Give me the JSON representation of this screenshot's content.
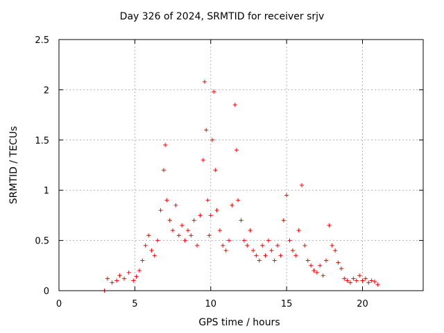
{
  "chart_data": {
    "type": "scatter",
    "title": "Day 326 of 2024, SRMTID for receiver srjv",
    "xlabel": "GPS time / hours",
    "ylabel": "SRMTID / TECUs",
    "xlim": [
      0,
      24
    ],
    "ylim": [
      0,
      2.5
    ],
    "xticks": [
      0,
      5,
      10,
      15,
      20
    ],
    "xtick_labels": [
      "0",
      "5",
      "10",
      "15",
      "20"
    ],
    "yticks": [
      0,
      0.5,
      1,
      1.5,
      2,
      2.5
    ],
    "ytick_labels": [
      "0",
      "0.5",
      "1",
      "1.5",
      "2",
      "2.5"
    ],
    "grid": true,
    "marker": "+",
    "color": "#ff0000",
    "series": [
      {
        "name": "SRMTID",
        "x": [
          3.0,
          3.2,
          3.5,
          3.8,
          4.0,
          4.3,
          4.6,
          4.9,
          5.1,
          5.3,
          5.5,
          5.7,
          5.9,
          6.1,
          6.3,
          6.5,
          6.7,
          6.9,
          7.0,
          7.1,
          7.3,
          7.5,
          7.7,
          7.9,
          8.1,
          8.3,
          8.5,
          8.7,
          8.9,
          9.1,
          9.3,
          9.5,
          9.6,
          9.7,
          9.8,
          9.9,
          10.0,
          10.1,
          10.2,
          10.3,
          10.4,
          10.6,
          10.8,
          11.0,
          11.2,
          11.4,
          11.6,
          11.7,
          11.8,
          12.0,
          12.2,
          12.4,
          12.6,
          12.8,
          13.0,
          13.2,
          13.4,
          13.6,
          13.8,
          14.0,
          14.2,
          14.4,
          14.6,
          14.8,
          15.0,
          15.2,
          15.4,
          15.6,
          15.8,
          16.0,
          16.2,
          16.4,
          16.6,
          16.8,
          17.0,
          17.2,
          17.4,
          17.6,
          17.8,
          18.0,
          18.2,
          18.4,
          18.6,
          18.8,
          19.0,
          19.2,
          19.4,
          19.6,
          19.8,
          20.0,
          20.2,
          20.4,
          20.6,
          20.8,
          21.0
        ],
        "y": [
          0.0,
          0.12,
          0.08,
          0.1,
          0.15,
          0.12,
          0.18,
          0.1,
          0.14,
          0.2,
          0.3,
          0.45,
          0.55,
          0.4,
          0.35,
          0.5,
          0.8,
          1.2,
          1.45,
          0.9,
          0.7,
          0.6,
          0.85,
          0.55,
          0.65,
          0.5,
          0.6,
          0.55,
          0.7,
          0.45,
          0.75,
          1.3,
          2.08,
          1.6,
          0.9,
          0.55,
          0.75,
          1.5,
          1.98,
          1.2,
          0.8,
          0.6,
          0.45,
          0.4,
          0.5,
          0.85,
          1.85,
          1.4,
          0.9,
          0.7,
          0.5,
          0.45,
          0.6,
          0.4,
          0.35,
          0.3,
          0.45,
          0.35,
          0.5,
          0.4,
          0.3,
          0.45,
          0.35,
          0.7,
          0.95,
          0.5,
          0.4,
          0.35,
          0.6,
          1.05,
          0.45,
          0.3,
          0.25,
          0.2,
          0.18,
          0.25,
          0.15,
          0.3,
          0.65,
          0.45,
          0.4,
          0.28,
          0.22,
          0.12,
          0.1,
          0.08,
          0.12,
          0.1,
          0.15,
          0.1,
          0.12,
          0.08,
          0.1,
          0.09,
          0.06
        ]
      }
    ]
  }
}
